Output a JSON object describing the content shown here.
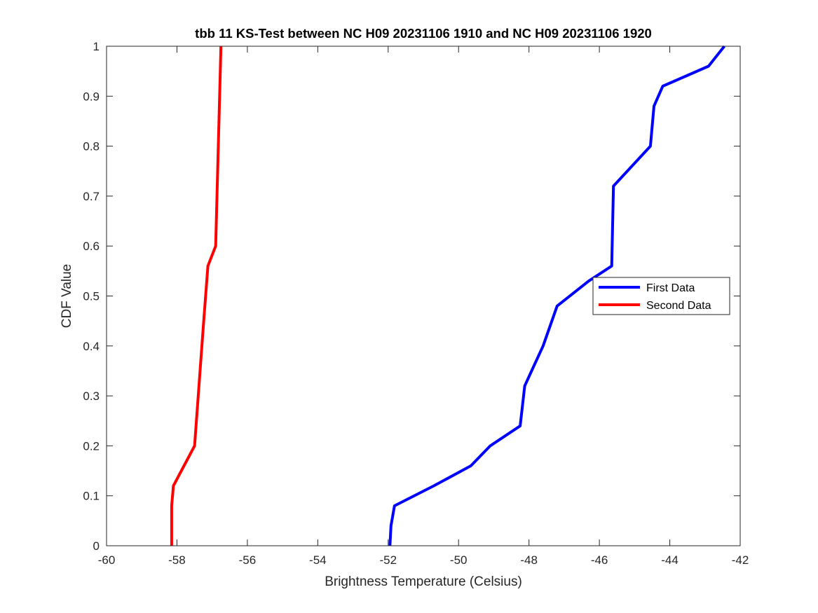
{
  "chart_data": {
    "type": "line",
    "title": "tbb 11 KS-Test between NC H09 20231106 1910 and NC H09 20231106 1920",
    "xlabel": "Brightness Temperature (Celsius)",
    "ylabel": "CDF Value",
    "xlim": [
      -60,
      -42
    ],
    "ylim": [
      0,
      1
    ],
    "xticks": [
      -60,
      -58,
      -56,
      -54,
      -52,
      -50,
      -48,
      -46,
      -44,
      -42
    ],
    "yticks": [
      0,
      0.1,
      0.2,
      0.3,
      0.4,
      0.5,
      0.6,
      0.7,
      0.8,
      0.9,
      1
    ],
    "grid": false,
    "legend_position": "right",
    "series": [
      {
        "name": "First Data",
        "color": "#0000ff",
        "x": [
          -51.95,
          -51.92,
          -51.82,
          -50.7,
          -49.65,
          -49.1,
          -48.25,
          -48.12,
          -47.6,
          -47.2,
          -46.3,
          -45.65,
          -45.6,
          -44.55,
          -44.45,
          -44.2,
          -42.9,
          -42.45
        ],
        "y": [
          0,
          0.04,
          0.08,
          0.12,
          0.16,
          0.2,
          0.24,
          0.32,
          0.4,
          0.48,
          0.53,
          0.56,
          0.72,
          0.8,
          0.88,
          0.92,
          0.96,
          1.0
        ]
      },
      {
        "name": "Second Data",
        "color": "#ff0000",
        "x": [
          -58.15,
          -58.15,
          -58.1,
          -57.5,
          -57.25,
          -57.12,
          -56.9,
          -56.75
        ],
        "y": [
          0,
          0.08,
          0.12,
          0.2,
          0.44,
          0.56,
          0.6,
          1.0
        ]
      }
    ]
  }
}
